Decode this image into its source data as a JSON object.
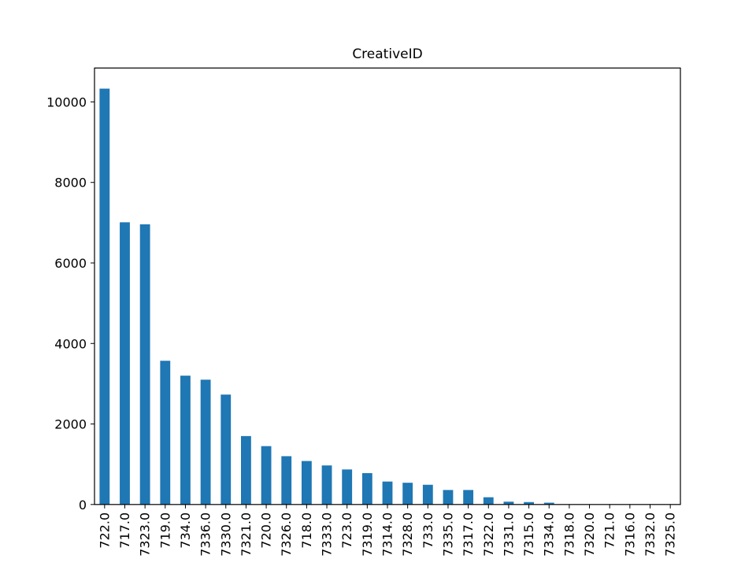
{
  "chart_data": {
    "type": "bar",
    "title": "CreativeID",
    "xlabel": "",
    "ylabel": "",
    "categories": [
      "722.0",
      "717.0",
      "7323.0",
      "719.0",
      "734.0",
      "7336.0",
      "7330.0",
      "7321.0",
      "720.0",
      "7326.0",
      "718.0",
      "7333.0",
      "723.0",
      "7319.0",
      "7314.0",
      "7328.0",
      "733.0",
      "7335.0",
      "7317.0",
      "7322.0",
      "7331.0",
      "7315.0",
      "7334.0",
      "7318.0",
      "7320.0",
      "721.0",
      "7316.0",
      "7332.0",
      "7325.0"
    ],
    "values": [
      10330,
      7010,
      6960,
      3570,
      3200,
      3100,
      2730,
      1700,
      1450,
      1200,
      1080,
      970,
      870,
      780,
      570,
      540,
      490,
      360,
      360,
      180,
      70,
      60,
      45,
      5,
      3,
      2,
      1,
      1,
      0
    ],
    "ylim": [
      0,
      10842
    ],
    "yticks": [
      0,
      2000,
      4000,
      6000,
      8000,
      10000
    ],
    "ytick_labels": [
      "0",
      "2000",
      "4000",
      "6000",
      "8000",
      "10000"
    ],
    "grid": false,
    "colors": {
      "bar": "#1f77b4",
      "axis": "#000000",
      "background": "#ffffff"
    }
  }
}
